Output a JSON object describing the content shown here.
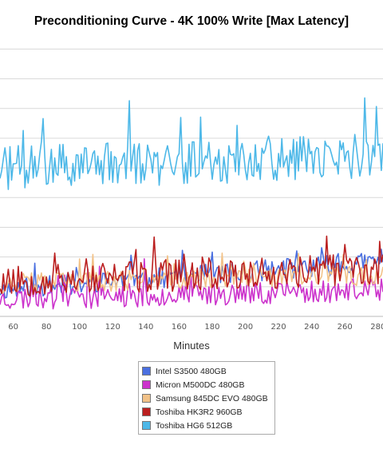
{
  "chart_data": {
    "type": "line",
    "title": "Preconditioning Curve - 4K 100% Write [Max Latency]",
    "xlabel": "Minutes",
    "ylabel": "",
    "xlim": [
      52,
      283
    ],
    "ylim": [
      0,
      9.2
    ],
    "x_ticks": [
      60,
      80,
      100,
      120,
      140,
      160,
      180,
      200,
      220,
      240,
      260,
      280
    ],
    "y_gridlines": [
      1,
      2,
      3,
      4,
      5,
      6,
      7,
      8,
      9
    ],
    "grid": true,
    "legend_position": "bottom-center",
    "series": [
      {
        "name": "Intel S3500 480GB",
        "color": "#4a6fe0",
        "base_start": 0.9,
        "base_end": 1.85,
        "amplitude": 0.35,
        "seed": 11
      },
      {
        "name": "Micron M500DC 480GB",
        "color": "#cc33cc",
        "base_start": 0.6,
        "base_end": 0.9,
        "amplitude": 0.4,
        "seed": 23
      },
      {
        "name": "Samsung 845DC EVO 480GB",
        "color": "#f2c288",
        "base_start": 1.1,
        "base_end": 1.4,
        "amplitude": 0.35,
        "seed": 37
      },
      {
        "name": "Toshiba HK3R2 960GB",
        "color": "#bb1f1f",
        "base_start": 1.2,
        "base_end": 1.6,
        "amplitude": 0.55,
        "seed": 53
      },
      {
        "name": "Toshiba HG6 512GB",
        "color": "#4db8e8",
        "base_start": 5.0,
        "base_end": 5.4,
        "amplitude": 0.75,
        "seed": 71
      }
    ]
  }
}
